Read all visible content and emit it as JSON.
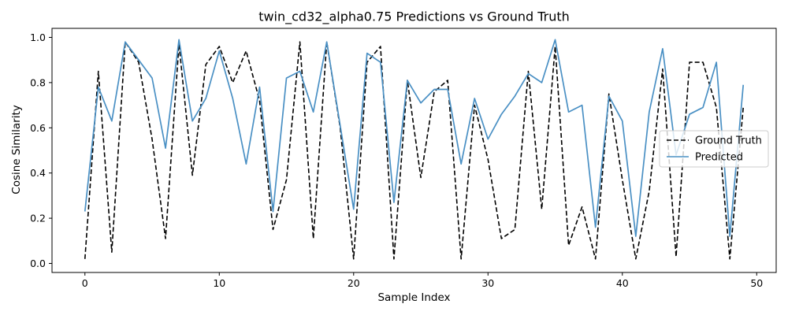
{
  "chart_data": {
    "type": "line",
    "title": "twin_cd32_alpha0.75 Predictions vs Ground Truth",
    "xlabel": "Sample Index",
    "ylabel": "Cosine Similarity",
    "xlim": [
      -2.45,
      51.45
    ],
    "ylim": [
      -0.04,
      1.04
    ],
    "xticks": [
      0,
      10,
      20,
      30,
      40,
      50
    ],
    "yticks": [
      0.0,
      0.2,
      0.4,
      0.6,
      0.8,
      1.0
    ],
    "xtick_labels": [
      "0",
      "10",
      "20",
      "30",
      "40",
      "50"
    ],
    "ytick_labels": [
      "0.0",
      "0.2",
      "0.4",
      "0.6",
      "0.8",
      "1.0"
    ],
    "grid": false,
    "legend": "center-right",
    "x": [
      0,
      1,
      2,
      3,
      4,
      5,
      6,
      7,
      8,
      9,
      10,
      11,
      12,
      13,
      14,
      15,
      16,
      17,
      18,
      19,
      20,
      21,
      22,
      23,
      24,
      25,
      26,
      27,
      28,
      29,
      30,
      31,
      32,
      33,
      34,
      35,
      36,
      37,
      38,
      39,
      40,
      41,
      42,
      43,
      44,
      45,
      46,
      47,
      48,
      49
    ],
    "series": [
      {
        "name": "Ground Truth",
        "color": "#000000",
        "style": "dashed",
        "values": [
          0.02,
          0.85,
          0.05,
          0.98,
          0.89,
          0.55,
          0.11,
          0.97,
          0.39,
          0.88,
          0.96,
          0.8,
          0.94,
          0.72,
          0.15,
          0.37,
          0.98,
          0.11,
          0.98,
          0.6,
          0.02,
          0.89,
          0.96,
          0.02,
          0.81,
          0.38,
          0.76,
          0.81,
          0.02,
          0.7,
          0.46,
          0.11,
          0.15,
          0.85,
          0.24,
          0.96,
          0.08,
          0.25,
          0.02,
          0.75,
          0.37,
          0.02,
          0.32,
          0.86,
          0.03,
          0.89,
          0.89,
          0.69,
          0.02,
          0.69
        ]
      },
      {
        "name": "Predicted",
        "color": "#4a90c4",
        "style": "solid",
        "values": [
          0.23,
          0.78,
          0.63,
          0.98,
          0.9,
          0.82,
          0.51,
          0.99,
          0.63,
          0.73,
          0.94,
          0.73,
          0.44,
          0.78,
          0.23,
          0.82,
          0.85,
          0.67,
          0.98,
          0.61,
          0.24,
          0.93,
          0.89,
          0.27,
          0.81,
          0.71,
          0.77,
          0.77,
          0.44,
          0.73,
          0.55,
          0.66,
          0.74,
          0.84,
          0.8,
          0.99,
          0.67,
          0.7,
          0.16,
          0.74,
          0.63,
          0.12,
          0.67,
          0.95,
          0.48,
          0.66,
          0.69,
          0.89,
          0.12,
          0.79
        ]
      }
    ]
  }
}
